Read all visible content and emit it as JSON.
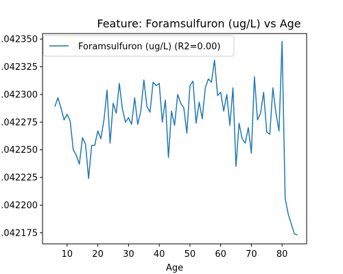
{
  "chart_data": {
    "type": "line",
    "title": "Feature: Foramsulfuron (ug/L) vs Age",
    "xlabel": "Age",
    "ylabel": "",
    "xlim": [
      2,
      88
    ],
    "ylim": [
      0.042165,
      0.042355
    ],
    "x_ticks": [
      10,
      20,
      30,
      40,
      50,
      60,
      70,
      80
    ],
    "y_ticks": [
      {
        "value": 0.042175,
        "label": ".042175"
      },
      {
        "value": 0.0422,
        "label": ".042200"
      },
      {
        "value": 0.042225,
        "label": ".042225"
      },
      {
        "value": 0.04225,
        "label": ".042250"
      },
      {
        "value": 0.042275,
        "label": ".042275"
      },
      {
        "value": 0.0423,
        "label": ".042300"
      },
      {
        "value": 0.042325,
        "label": ".042325"
      },
      {
        "value": 0.04235,
        "label": ".042350"
      }
    ],
    "grid": false,
    "legend_position": "top-left",
    "series": [
      {
        "name": "Foramsulfuron (ug/L) (R2=0.00)",
        "color": "#1f77b4",
        "x": [
          6,
          7,
          8,
          9,
          10,
          11,
          12,
          13,
          14,
          15,
          16,
          17,
          18,
          19,
          20,
          21,
          22,
          23,
          24,
          25,
          26,
          27,
          28,
          29,
          30,
          31,
          32,
          33,
          34,
          35,
          36,
          37,
          38,
          39,
          40,
          41,
          42,
          43,
          44,
          45,
          46,
          47,
          48,
          49,
          50,
          51,
          52,
          53,
          54,
          55,
          56,
          57,
          58,
          59,
          60,
          61,
          62,
          63,
          64,
          65,
          66,
          67,
          68,
          69,
          70,
          71,
          72,
          73,
          74,
          75,
          76,
          77,
          78,
          79,
          80,
          81,
          82,
          83,
          84,
          85
        ],
        "y": [
          0.042289,
          0.042297,
          0.042288,
          0.042277,
          0.042282,
          0.042276,
          0.04225,
          0.042245,
          0.042237,
          0.042261,
          0.042255,
          0.042224,
          0.042254,
          0.042254,
          0.042267,
          0.04226,
          0.042277,
          0.042304,
          0.042256,
          0.042292,
          0.042283,
          0.04231,
          0.042287,
          0.042275,
          0.042279,
          0.042273,
          0.042297,
          0.042273,
          0.042285,
          0.042313,
          0.042289,
          0.042284,
          0.042311,
          0.042308,
          0.04231,
          0.042275,
          0.042295,
          0.042243,
          0.042285,
          0.042272,
          0.0423,
          0.042292,
          0.042288,
          0.042265,
          0.042308,
          0.042312,
          0.042274,
          0.042293,
          0.042278,
          0.042306,
          0.042314,
          0.042311,
          0.042331,
          0.042299,
          0.042302,
          0.042285,
          0.0423,
          0.042272,
          0.042306,
          0.042235,
          0.042274,
          0.04226,
          0.042256,
          0.04227,
          0.042247,
          0.042316,
          0.042277,
          0.042283,
          0.042302,
          0.042266,
          0.042264,
          0.042306,
          0.042283,
          0.042267,
          0.042348,
          0.042206,
          0.042192,
          0.042183,
          0.042174,
          0.042173
        ]
      }
    ]
  }
}
